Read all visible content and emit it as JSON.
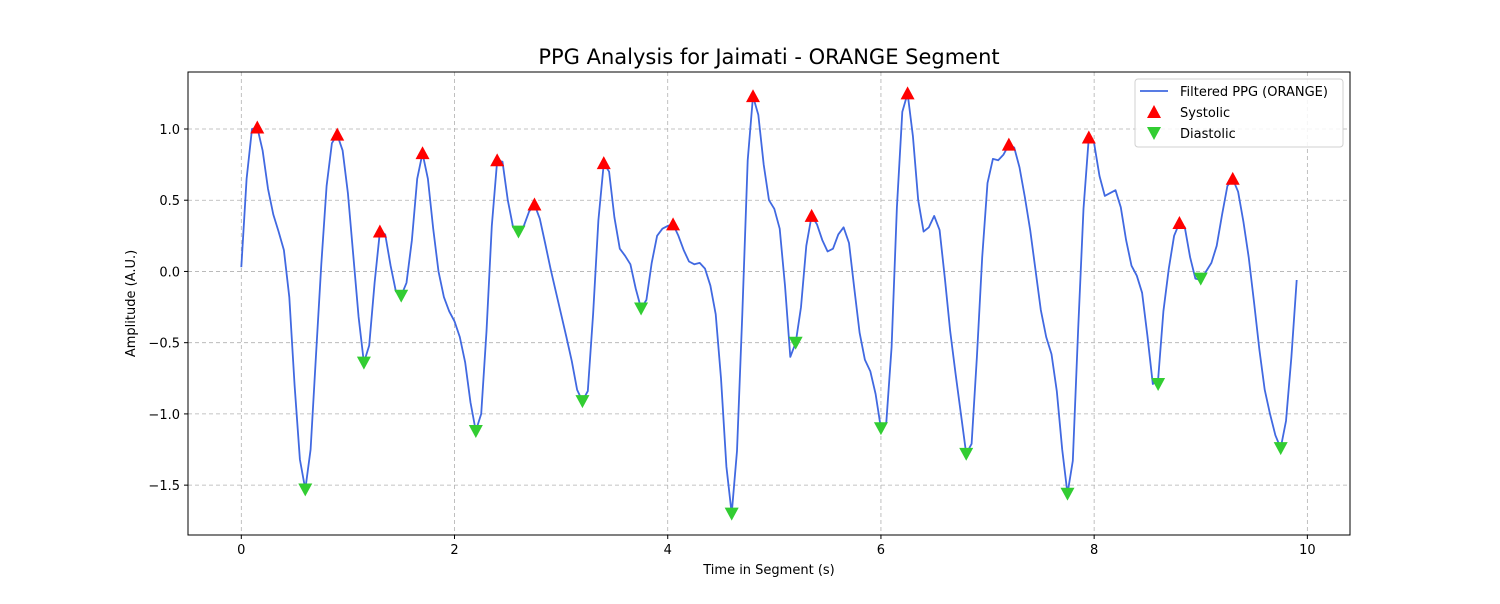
{
  "chart_data": {
    "type": "line",
    "title": "PPG Analysis for Jaimati - ORANGE Segment",
    "xlabel": "Time in Segment (s)",
    "ylabel": "Amplitude (A.U.)",
    "xlim": [
      -0.5,
      10.4
    ],
    "ylim": [
      -1.85,
      1.4
    ],
    "xticks": [
      0,
      2,
      4,
      6,
      8,
      10
    ],
    "xtick_labels": [
      "0",
      "2",
      "4",
      "6",
      "8",
      "10"
    ],
    "yticks": [
      -1.5,
      -1.0,
      -0.5,
      0.0,
      0.5,
      1.0
    ],
    "ytick_labels": [
      "−1.5",
      "−1.0",
      "−0.5",
      "0.0",
      "0.5",
      "1.0"
    ],
    "grid": true,
    "legend_position": "top-right",
    "colors": {
      "signal": "#4169e1",
      "systolic": "#ff0000",
      "diastolic": "#32cd32"
    },
    "series": [
      {
        "name": "Filtered PPG (ORANGE)",
        "kind": "line",
        "x": [
          0.0,
          0.05,
          0.1,
          0.15,
          0.2,
          0.25,
          0.3,
          0.35,
          0.4,
          0.45,
          0.5,
          0.55,
          0.6,
          0.65,
          0.7,
          0.75,
          0.8,
          0.85,
          0.9,
          0.95,
          1.0,
          1.05,
          1.1,
          1.15,
          1.2,
          1.25,
          1.3,
          1.35,
          1.4,
          1.45,
          1.5,
          1.55,
          1.6,
          1.65,
          1.7,
          1.75,
          1.8,
          1.85,
          1.9,
          1.95,
          2.0,
          2.05,
          2.1,
          2.15,
          2.2,
          2.25,
          2.3,
          2.35,
          2.4,
          2.45,
          2.5,
          2.55,
          2.6,
          2.65,
          2.7,
          2.75,
          2.8,
          2.85,
          2.9,
          2.95,
          3.0,
          3.05,
          3.1,
          3.15,
          3.2,
          3.25,
          3.3,
          3.35,
          3.4,
          3.45,
          3.5,
          3.55,
          3.6,
          3.65,
          3.7,
          3.75,
          3.8,
          3.85,
          3.9,
          3.95,
          4.0,
          4.05,
          4.1,
          4.15,
          4.2,
          4.25,
          4.3,
          4.35,
          4.4,
          4.45,
          4.5,
          4.55,
          4.6,
          4.65,
          4.7,
          4.75,
          4.8,
          4.85,
          4.9,
          4.95,
          5.0,
          5.05,
          5.1,
          5.15,
          5.2,
          5.25,
          5.3,
          5.35,
          5.4,
          5.45,
          5.5,
          5.55,
          5.6,
          5.65,
          5.7,
          5.75,
          5.8,
          5.85,
          5.9,
          5.95,
          6.0,
          6.05,
          6.1,
          6.15,
          6.2,
          6.25,
          6.3,
          6.35,
          6.4,
          6.45,
          6.5,
          6.55,
          6.6,
          6.65,
          6.7,
          6.75,
          6.8,
          6.85,
          6.9,
          6.95,
          7.0,
          7.05,
          7.1,
          7.15,
          7.2,
          7.25,
          7.3,
          7.35,
          7.4,
          7.45,
          7.5,
          7.55,
          7.6,
          7.65,
          7.7,
          7.75,
          7.8,
          7.85,
          7.9,
          7.95,
          8.0,
          8.05,
          8.1,
          8.15,
          8.2,
          8.25,
          8.3,
          8.35,
          8.4,
          8.45,
          8.5,
          8.55,
          8.6,
          8.65,
          8.7,
          8.75,
          8.8,
          8.85,
          8.9,
          8.95,
          9.0,
          9.05,
          9.1,
          9.15,
          9.2,
          9.25,
          9.3,
          9.35,
          9.4,
          9.45,
          9.5,
          9.55,
          9.6,
          9.65,
          9.7,
          9.75,
          9.8,
          9.85,
          9.9
        ],
        "y": [
          0.03,
          0.65,
          1.0,
          1.01,
          0.85,
          0.58,
          0.4,
          0.28,
          0.15,
          -0.18,
          -0.8,
          -1.32,
          -1.53,
          -1.25,
          -0.6,
          0.05,
          0.6,
          0.9,
          0.96,
          0.85,
          0.55,
          0.12,
          -0.32,
          -0.64,
          -0.52,
          -0.08,
          0.28,
          0.26,
          0.04,
          -0.14,
          -0.17,
          -0.08,
          0.22,
          0.65,
          0.83,
          0.65,
          0.3,
          0.0,
          -0.18,
          -0.28,
          -0.35,
          -0.46,
          -0.64,
          -0.92,
          -1.12,
          -1.0,
          -0.42,
          0.32,
          0.78,
          0.77,
          0.5,
          0.31,
          0.28,
          0.32,
          0.42,
          0.47,
          0.37,
          0.2,
          0.02,
          -0.14,
          -0.3,
          -0.46,
          -0.63,
          -0.83,
          -0.91,
          -0.84,
          -0.3,
          0.36,
          0.76,
          0.7,
          0.38,
          0.16,
          0.11,
          0.05,
          -0.12,
          -0.26,
          -0.2,
          0.06,
          0.25,
          0.3,
          0.32,
          0.33,
          0.25,
          0.15,
          0.07,
          0.05,
          0.06,
          0.02,
          -0.1,
          -0.3,
          -0.75,
          -1.37,
          -1.7,
          -1.26,
          -0.3,
          0.78,
          1.23,
          1.1,
          0.75,
          0.5,
          0.44,
          0.3,
          -0.1,
          -0.6,
          -0.5,
          -0.25,
          0.18,
          0.39,
          0.33,
          0.22,
          0.14,
          0.16,
          0.26,
          0.31,
          0.2,
          -0.12,
          -0.43,
          -0.62,
          -0.7,
          -0.86,
          -1.1,
          -1.06,
          -0.53,
          0.45,
          1.12,
          1.25,
          0.95,
          0.5,
          0.28,
          0.31,
          0.39,
          0.29,
          -0.05,
          -0.42,
          -0.72,
          -1.0,
          -1.28,
          -1.21,
          -0.6,
          0.1,
          0.62,
          0.79,
          0.78,
          0.82,
          0.89,
          0.87,
          0.73,
          0.52,
          0.29,
          0.01,
          -0.27,
          -0.46,
          -0.58,
          -0.84,
          -1.25,
          -1.56,
          -1.33,
          -0.4,
          0.44,
          0.94,
          0.9,
          0.67,
          0.53,
          0.55,
          0.57,
          0.45,
          0.22,
          0.04,
          -0.03,
          -0.15,
          -0.45,
          -0.79,
          -0.76,
          -0.28,
          0.02,
          0.25,
          0.34,
          0.31,
          0.1,
          -0.05,
          -0.06,
          0.0,
          0.06,
          0.18,
          0.4,
          0.6,
          0.65,
          0.56,
          0.35,
          0.1,
          -0.22,
          -0.55,
          -0.83,
          -1.0,
          -1.15,
          -1.24,
          -1.05,
          -0.6,
          -0.06
        ]
      },
      {
        "name": "Systolic",
        "kind": "marker-up",
        "x": [
          0.15,
          0.9,
          1.3,
          1.7,
          2.4,
          2.75,
          3.4,
          4.05,
          4.8,
          5.35,
          6.25,
          7.2,
          7.95,
          8.8,
          9.3
        ],
        "y": [
          1.01,
          0.96,
          0.28,
          0.83,
          0.78,
          0.47,
          0.76,
          0.33,
          1.23,
          0.39,
          1.25,
          0.89,
          0.94,
          0.34,
          0.65
        ]
      },
      {
        "name": "Diastolic",
        "kind": "marker-down",
        "x": [
          0.6,
          1.15,
          1.5,
          2.2,
          2.6,
          3.2,
          3.75,
          4.6,
          5.2,
          6.0,
          6.8,
          7.75,
          8.6,
          9.0,
          9.75
        ],
        "y": [
          -1.53,
          -0.64,
          -0.17,
          -1.12,
          0.28,
          -0.91,
          -0.26,
          -1.7,
          -0.5,
          -1.1,
          -1.28,
          -1.56,
          -0.79,
          -0.05,
          -1.24
        ]
      }
    ]
  }
}
